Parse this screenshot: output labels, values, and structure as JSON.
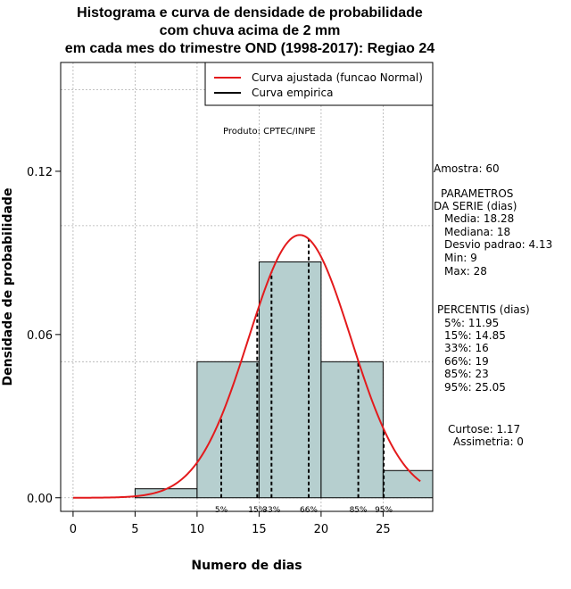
{
  "titles": {
    "line1": "Histograma e curva de densidade de probabilidade",
    "line2": "com chuva acima de 2 mm",
    "line3": "em cada mes do trimestre OND (1998-2017): Regiao 24"
  },
  "credit": "Produto: CPTEC/INPE",
  "stats": {
    "amostra": "Amostra: 60",
    "params_title1": "PARAMETROS",
    "params_title2": "DA SERIE (dias)",
    "media": "Media: 18.28",
    "mediana": "Mediana: 18",
    "desvio": "Desvio padrao: 4.13",
    "min": "Min: 9",
    "max": "Max: 28",
    "percentis_title": "PERCENTIS (dias)",
    "p5": "5%: 11.95",
    "p15": "15%: 14.85",
    "p33": "33%: 16",
    "p66": "66%: 19",
    "p85": "85%: 23",
    "p95": "95%: 25.05",
    "curtose": "Curtose: 1.17",
    "assimetria": "Assimetria: 0"
  },
  "colors": {
    "bar_fill": "#b6cfcf",
    "fit_curve": "#e31a1c",
    "empirical": "#000000",
    "grid": "#b0b0b0"
  },
  "chart_data": {
    "type": "bar",
    "title": "Histograma e curva de densidade de probabilidade com chuva acima de 2 mm em cada mes do trimestre OND (1998-2017): Regiao 24",
    "xlabel": "Numero de dias",
    "ylabel": "Densidade de probabilidade",
    "xlim": [
      -1,
      29
    ],
    "ylim": [
      -0.005,
      0.16
    ],
    "x_ticks": [
      0,
      5,
      10,
      15,
      20,
      25
    ],
    "x_tick_labels": [
      "0",
      "5",
      "10",
      "15",
      "20",
      "25"
    ],
    "y_ticks": [
      0.0,
      0.06,
      0.12
    ],
    "y_tick_labels": [
      "0.00",
      "0.06",
      "0.12"
    ],
    "grid": true,
    "bins": [
      {
        "from": 5,
        "to": 10,
        "density": 0.0033
      },
      {
        "from": 10,
        "to": 15,
        "density": 0.05
      },
      {
        "from": 15,
        "to": 20,
        "density": 0.0867
      },
      {
        "from": 20,
        "to": 25,
        "density": 0.05
      },
      {
        "from": 25,
        "to": 30,
        "density": 0.01
      }
    ],
    "normal_fit": {
      "mean": 18.28,
      "sd": 4.13,
      "x_from": 0,
      "x_to": 28
    },
    "percentiles": [
      {
        "label": "5%",
        "x": 11.95
      },
      {
        "label": "15%",
        "x": 14.85
      },
      {
        "label": "33%",
        "x": 16
      },
      {
        "label": "66%",
        "x": 19
      },
      {
        "label": "85%",
        "x": 23
      },
      {
        "label": "95%",
        "x": 25.05
      }
    ],
    "legend": {
      "position": "top-right",
      "entries": [
        {
          "label": "Curva ajustada (funcao Normal)",
          "color": "#e31a1c"
        },
        {
          "label": "Curva empirica",
          "color": "#000000"
        }
      ]
    }
  }
}
